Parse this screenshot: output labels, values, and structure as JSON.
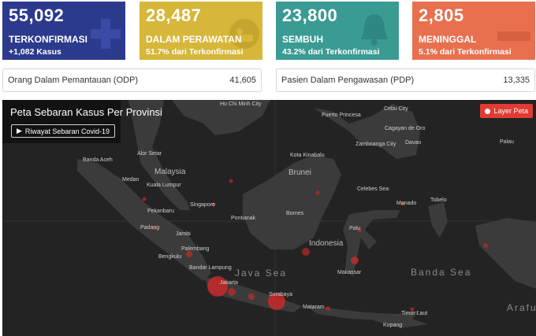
{
  "stats": [
    {
      "value": "55,092",
      "label": "TERKONFIRMASI",
      "sub": "+1,082 Kasus",
      "icon": "plus-icon",
      "color": "#2c3a8e"
    },
    {
      "value": "28,487",
      "label": "DALAM PERAWATAN",
      "sub": "51.7% dari Terkonfirmasi",
      "icon": "patient-bed-icon",
      "color": "#d6b73a"
    },
    {
      "value": "23,800",
      "label": "SEMBUH",
      "sub": "43.2% dari Terkonfirmasi",
      "icon": "bell-icon",
      "color": "#3a9b94"
    },
    {
      "value": "2,805",
      "label": "MENINGGAL",
      "sub": "5.1% dari Terkonfirmasi",
      "icon": "minus-icon",
      "color": "#e8704f"
    }
  ],
  "odp": {
    "label": "Orang Dalam Pemantauan (ODP)",
    "value": "41,605"
  },
  "pdp": {
    "label": "Pasien Dalam Pengawasan (PDP)",
    "value": "13,335"
  },
  "map": {
    "title": "Peta Sebaran Kasus Per Provinsi",
    "history_button": "Riwayat Sebaran Covid-19",
    "layer_button": "Layer Peta",
    "cities": [
      "Ho Chi Minh City",
      "Puerto Princesa",
      "Cebu City",
      "Cagayan de Oro",
      "Zamboanga City",
      "Davao",
      "Palau",
      "Kota Kinabalu",
      "Banda Aceh",
      "Alor Setar",
      "Medan",
      "Kuala Lumpur",
      "Singapore",
      "Pekanbaru",
      "Padang",
      "Jambi",
      "Palembang",
      "Bengkulu",
      "Bandar Lampung",
      "Jakarta",
      "Surabaya",
      "Mataram",
      "Pontianak",
      "Bornes",
      "Manado",
      "Tobelo",
      "Palu",
      "Makassar",
      "Kupang",
      "Timor Laut"
    ],
    "regions": [
      "Malaysia",
      "Brunei",
      "Indonesia",
      "Java Sea",
      "Banda Sea",
      "Arafura Sea",
      "Celebes Sea"
    ]
  }
}
